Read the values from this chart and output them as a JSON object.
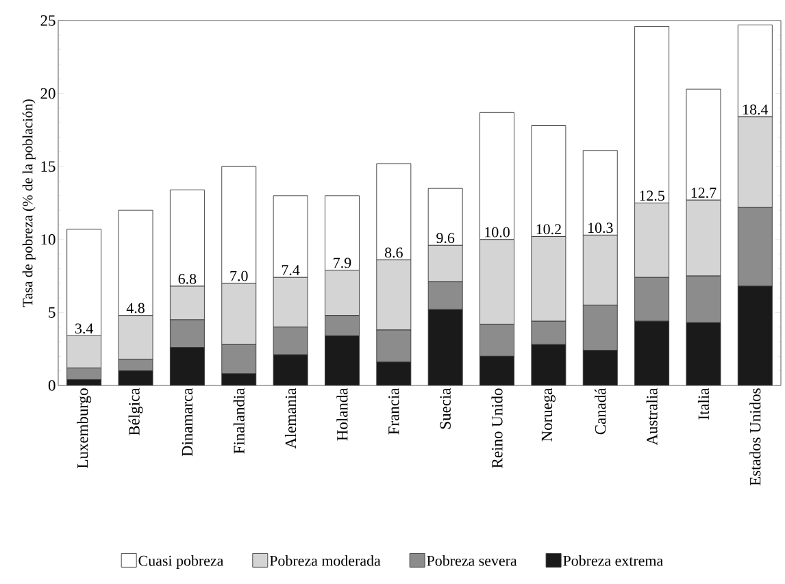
{
  "chart_data": {
    "type": "bar",
    "stacked": true,
    "ylabel": "Tasa de pobreza (% de la población)",
    "categories": [
      "Luxemburgo",
      "Bélgica",
      "Dinamarca",
      "Finalandia",
      "Alemania",
      "Holanda",
      "Francia",
      "Suecia",
      "Reino Unido",
      "Noruega",
      "Canadá",
      "Australia",
      "Italia",
      "Estados Unidos"
    ],
    "series": [
      {
        "name": "Pobreza extrema",
        "color": "#1a1a1a",
        "values": [
          0.4,
          1.0,
          2.6,
          0.8,
          2.1,
          3.4,
          1.6,
          5.2,
          2.0,
          2.8,
          2.4,
          4.4,
          4.3,
          6.8
        ]
      },
      {
        "name": "Pobreza severa",
        "color": "#8c8c8c",
        "values": [
          0.8,
          0.8,
          1.9,
          2.0,
          1.9,
          1.4,
          2.2,
          1.9,
          2.2,
          1.6,
          3.1,
          3.0,
          3.2,
          5.4
        ]
      },
      {
        "name": "Pobreza moderada",
        "color": "#d4d4d4",
        "values": [
          2.2,
          3.0,
          2.3,
          4.2,
          3.4,
          3.1,
          4.8,
          2.5,
          5.8,
          5.8,
          4.8,
          5.1,
          5.2,
          6.2
        ]
      },
      {
        "name": "Cuasi pobreza",
        "color": "#ffffff",
        "values": [
          7.3,
          7.2,
          6.6,
          8.0,
          5.6,
          5.1,
          6.6,
          3.9,
          8.7,
          7.6,
          5.8,
          12.1,
          7.6,
          6.3
        ]
      }
    ],
    "ylim": [
      0,
      25
    ],
    "yticks": [
      0,
      5,
      10,
      15,
      20,
      25
    ],
    "legend": "bottom",
    "annotations": [
      {
        "text": "3.4",
        "x": "Luxemburgo",
        "y": 3.4
      },
      {
        "text": "4.8",
        "x": "Bélgica",
        "y": 4.8
      },
      {
        "text": "6.8",
        "x": "Dinamarca",
        "y": 6.8
      },
      {
        "text": "7.0",
        "x": "Finalandia",
        "y": 7.0
      },
      {
        "text": "7.4",
        "x": "Alemania",
        "y": 7.4
      },
      {
        "text": "7.9",
        "x": "Holanda",
        "y": 7.9
      },
      {
        "text": "8.6",
        "x": "Francia",
        "y": 8.6
      },
      {
        "text": "9.6",
        "x": "Suecia",
        "y": 9.6
      },
      {
        "text": "10.0",
        "x": "Reino Unido",
        "y": 10.0
      },
      {
        "text": "10.2",
        "x": "Noruega",
        "y": 10.2
      },
      {
        "text": "10.3",
        "x": "Canadá",
        "y": 10.3
      },
      {
        "text": "12.5",
        "x": "Australia",
        "y": 12.5
      },
      {
        "text": "12.7",
        "x": "Italia",
        "y": 12.7
      },
      {
        "text": "18.4",
        "x": "Estados Unidos",
        "y": 18.4
      }
    ]
  }
}
